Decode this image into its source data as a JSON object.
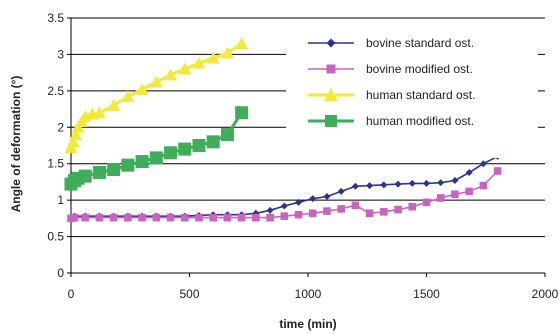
{
  "chart_data": {
    "type": "line",
    "xlabel": "time (min)",
    "ylabel": "Angle of deformation (°)",
    "xlim": [
      0,
      2000
    ],
    "ylim": [
      0,
      3.5
    ],
    "x_ticks": [
      "0",
      "500",
      "1000",
      "1500",
      "2000"
    ],
    "y_ticks": [
      "0",
      "0.5",
      "1",
      "1.5",
      "2",
      "2.5",
      "3",
      "3.5"
    ],
    "grid": "horizontal",
    "legend_position": "top-right",
    "series": [
      {
        "name": "bovine standard ost.",
        "color": "#2a3590",
        "marker": "diamond",
        "points": [
          [
            0,
            0.77
          ],
          [
            15,
            0.78
          ],
          [
            60,
            0.78
          ],
          [
            120,
            0.78
          ],
          [
            180,
            0.78
          ],
          [
            240,
            0.78
          ],
          [
            300,
            0.78
          ],
          [
            360,
            0.78
          ],
          [
            420,
            0.78
          ],
          [
            480,
            0.78
          ],
          [
            540,
            0.79
          ],
          [
            600,
            0.8
          ],
          [
            660,
            0.8
          ],
          [
            720,
            0.8
          ],
          [
            780,
            0.82
          ],
          [
            840,
            0.86
          ],
          [
            900,
            0.92
          ],
          [
            960,
            0.97
          ],
          [
            1020,
            1.02
          ],
          [
            1080,
            1.05
          ],
          [
            1140,
            1.12
          ],
          [
            1200,
            1.19
          ],
          [
            1260,
            1.2
          ],
          [
            1320,
            1.21
          ],
          [
            1380,
            1.22
          ],
          [
            1440,
            1.23
          ],
          [
            1500,
            1.23
          ],
          [
            1560,
            1.24
          ],
          [
            1620,
            1.27
          ],
          [
            1680,
            1.38
          ],
          [
            1740,
            1.5
          ],
          [
            1800,
            1.6
          ]
        ]
      },
      {
        "name": "bovine modified ost.",
        "color": "#c864c0",
        "marker": "square",
        "points": [
          [
            0,
            0.75
          ],
          [
            15,
            0.76
          ],
          [
            60,
            0.76
          ],
          [
            120,
            0.76
          ],
          [
            180,
            0.76
          ],
          [
            240,
            0.76
          ],
          [
            300,
            0.76
          ],
          [
            360,
            0.76
          ],
          [
            420,
            0.76
          ],
          [
            480,
            0.76
          ],
          [
            540,
            0.76
          ],
          [
            600,
            0.76
          ],
          [
            660,
            0.76
          ],
          [
            720,
            0.76
          ],
          [
            780,
            0.76
          ],
          [
            840,
            0.76
          ],
          [
            900,
            0.78
          ],
          [
            960,
            0.8
          ],
          [
            1020,
            0.82
          ],
          [
            1080,
            0.85
          ],
          [
            1140,
            0.88
          ],
          [
            1200,
            0.93
          ],
          [
            1260,
            0.82
          ],
          [
            1320,
            0.84
          ],
          [
            1380,
            0.87
          ],
          [
            1440,
            0.91
          ],
          [
            1500,
            0.97
          ],
          [
            1560,
            1.03
          ],
          [
            1620,
            1.08
          ],
          [
            1680,
            1.12
          ],
          [
            1740,
            1.2
          ],
          [
            1800,
            1.4
          ]
        ]
      },
      {
        "name": "human standard ost.",
        "color": "#f2ea3a",
        "marker": "triangle",
        "points": [
          [
            0,
            1.72
          ],
          [
            10,
            1.8
          ],
          [
            20,
            1.9
          ],
          [
            30,
            2.0
          ],
          [
            45,
            2.08
          ],
          [
            60,
            2.15
          ],
          [
            90,
            2.18
          ],
          [
            120,
            2.2
          ],
          [
            180,
            2.3
          ],
          [
            240,
            2.42
          ],
          [
            300,
            2.52
          ],
          [
            360,
            2.62
          ],
          [
            420,
            2.72
          ],
          [
            480,
            2.8
          ],
          [
            540,
            2.88
          ],
          [
            600,
            2.95
          ],
          [
            660,
            3.02
          ],
          [
            720,
            3.15
          ]
        ]
      },
      {
        "name": "human modified ost.",
        "color": "#3eae5a",
        "marker": "square",
        "points": [
          [
            0,
            1.22
          ],
          [
            15,
            1.27
          ],
          [
            30,
            1.3
          ],
          [
            60,
            1.33
          ],
          [
            120,
            1.38
          ],
          [
            180,
            1.42
          ],
          [
            240,
            1.48
          ],
          [
            300,
            1.53
          ],
          [
            360,
            1.58
          ],
          [
            420,
            1.65
          ],
          [
            480,
            1.7
          ],
          [
            540,
            1.75
          ],
          [
            600,
            1.8
          ],
          [
            660,
            1.9
          ],
          [
            720,
            2.2
          ]
        ]
      }
    ]
  }
}
